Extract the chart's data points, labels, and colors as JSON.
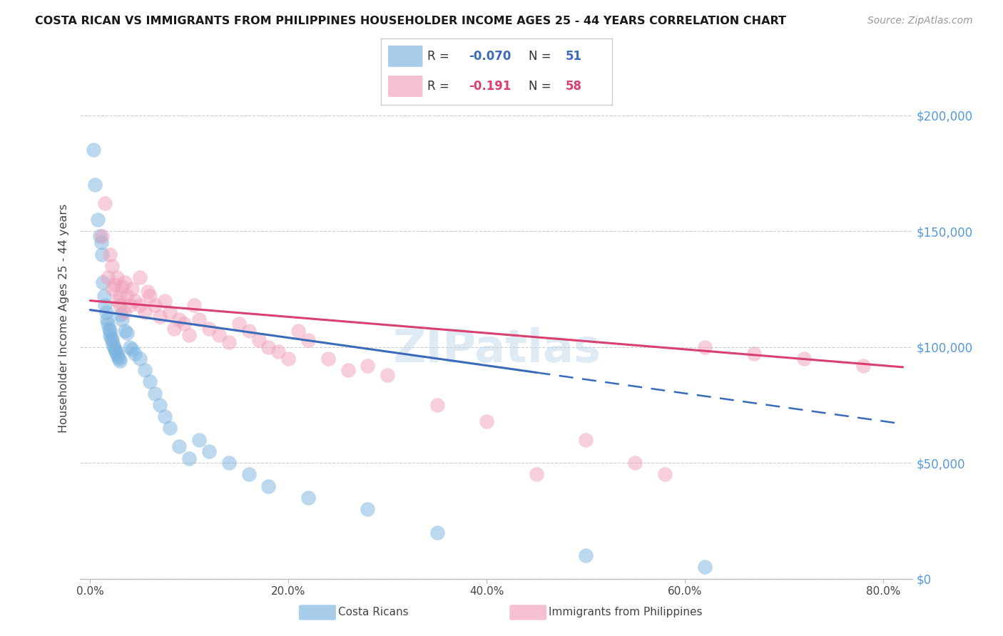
{
  "title": "COSTA RICAN VS IMMIGRANTS FROM PHILIPPINES HOUSEHOLDER INCOME AGES 25 - 44 YEARS CORRELATION CHART",
  "source": "Source: ZipAtlas.com",
  "ylabel": "Householder Income Ages 25 - 44 years",
  "xlabel_vals": [
    0.0,
    20.0,
    40.0,
    60.0,
    80.0
  ],
  "ylabel_vals": [
    0,
    50000,
    100000,
    150000,
    200000
  ],
  "ylim": [
    0,
    225000
  ],
  "xlim": [
    -1,
    83
  ],
  "blue_R": -0.07,
  "blue_N": 51,
  "pink_R": -0.191,
  "pink_N": 58,
  "blue_color": "#7ab3e0",
  "pink_color": "#f0a0b8",
  "blue_line_color": "#3a6bbb",
  "pink_line_color": "#d94070",
  "legend_blue_label": "Costa Ricans",
  "legend_pink_label": "Immigrants from Philippines",
  "watermark": "ZIPatlas",
  "blue_x": [
    0.3,
    0.5,
    0.8,
    1.0,
    1.1,
    1.2,
    1.3,
    1.4,
    1.5,
    1.6,
    1.7,
    1.8,
    1.9,
    2.0,
    2.0,
    2.1,
    2.2,
    2.3,
    2.4,
    2.5,
    2.6,
    2.7,
    2.8,
    2.9,
    3.0,
    3.1,
    3.2,
    3.5,
    3.7,
    4.0,
    4.2,
    4.5,
    5.0,
    5.5,
    6.0,
    6.5,
    7.0,
    7.5,
    8.0,
    9.0,
    10.0,
    11.0,
    12.0,
    14.0,
    16.0,
    18.0,
    22.0,
    28.0,
    35.0,
    50.0,
    62.0
  ],
  "blue_y": [
    185000,
    170000,
    155000,
    148000,
    145000,
    140000,
    128000,
    122000,
    118000,
    115000,
    112000,
    110000,
    108000,
    107000,
    105000,
    104000,
    103000,
    101000,
    100000,
    99000,
    98000,
    97000,
    96000,
    95000,
    94000,
    114000,
    112000,
    107000,
    106000,
    100000,
    99000,
    97000,
    95000,
    90000,
    85000,
    80000,
    75000,
    70000,
    65000,
    57000,
    52000,
    60000,
    55000,
    50000,
    45000,
    40000,
    35000,
    30000,
    20000,
    10000,
    5000
  ],
  "pink_x": [
    1.2,
    1.5,
    1.8,
    2.0,
    2.2,
    2.3,
    2.5,
    2.7,
    2.8,
    3.0,
    3.0,
    3.2,
    3.4,
    3.5,
    3.7,
    4.0,
    4.2,
    4.5,
    5.0,
    5.0,
    5.5,
    5.8,
    6.0,
    6.5,
    7.0,
    7.5,
    8.0,
    8.5,
    9.0,
    9.5,
    10.0,
    10.5,
    11.0,
    12.0,
    13.0,
    14.0,
    15.0,
    16.0,
    17.0,
    18.0,
    19.0,
    20.0,
    21.0,
    22.0,
    24.0,
    26.0,
    28.0,
    30.0,
    35.0,
    40.0,
    45.0,
    50.0,
    55.0,
    58.0,
    62.0,
    67.0,
    72.0,
    78.0
  ],
  "pink_y": [
    148000,
    162000,
    130000,
    140000,
    135000,
    125000,
    127000,
    130000,
    120000,
    118000,
    122000,
    126000,
    115000,
    128000,
    122000,
    118000,
    125000,
    120000,
    130000,
    118000,
    115000,
    124000,
    122000,
    118000,
    113000,
    120000,
    115000,
    108000,
    112000,
    110000,
    105000,
    118000,
    112000,
    108000,
    105000,
    102000,
    110000,
    107000,
    103000,
    100000,
    98000,
    95000,
    107000,
    103000,
    95000,
    90000,
    92000,
    88000,
    75000,
    68000,
    45000,
    60000,
    50000,
    45000,
    100000,
    97000,
    95000,
    92000
  ],
  "blue_line_x0": 0,
  "blue_line_x_solid_end": 45,
  "blue_line_x_dash_end": 82,
  "pink_line_x0": 0,
  "pink_line_x_end": 82,
  "blue_intercept": 116000,
  "blue_slope": -600,
  "pink_intercept": 120000,
  "pink_slope": -350
}
